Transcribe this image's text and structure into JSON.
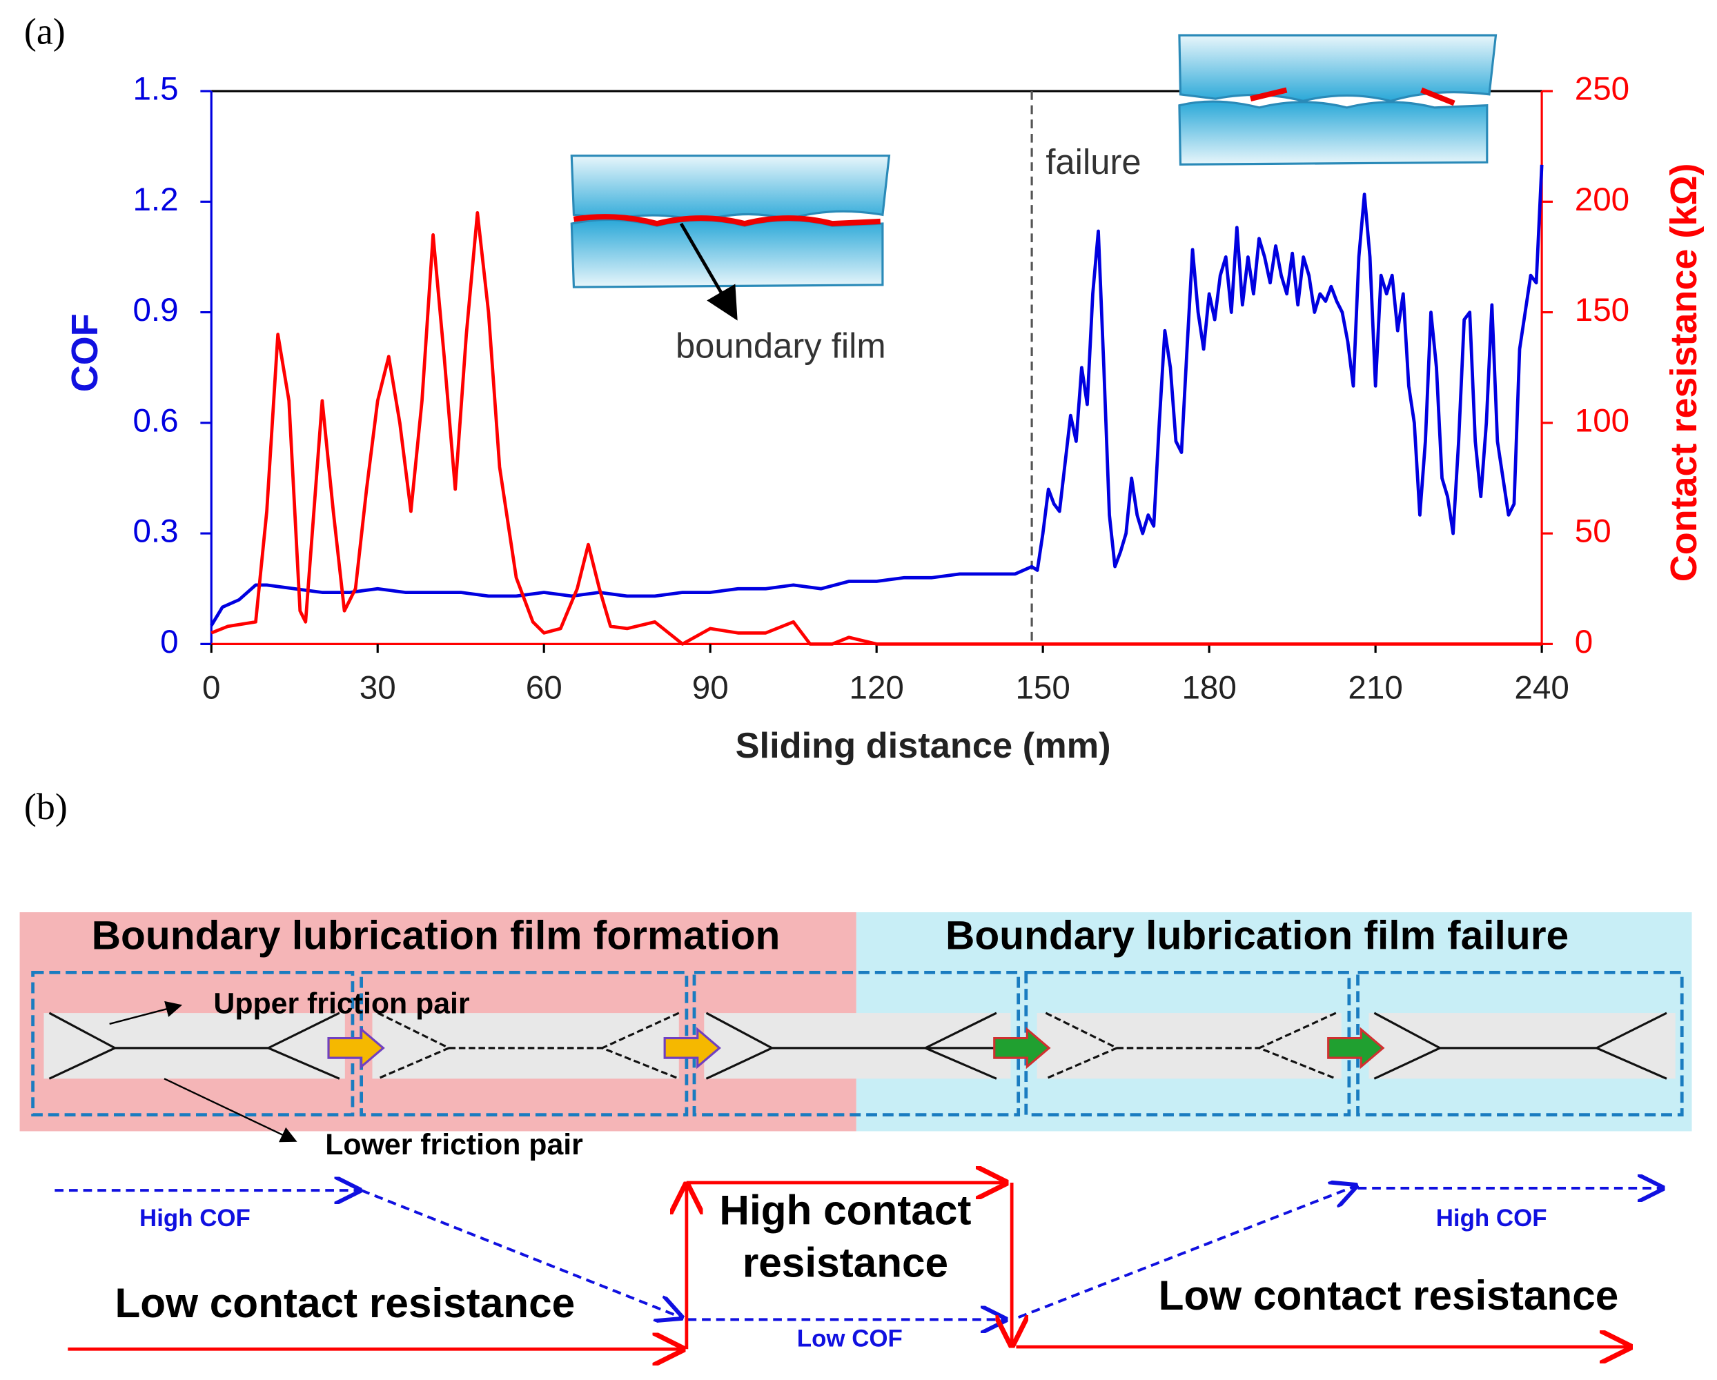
{
  "chart_data": {
    "type": "line",
    "panel_label": "(a)",
    "x_label": "Sliding distance (mm)",
    "y_label": "COF",
    "y2_label": "Contact resistance (kΩ)",
    "annotations": [
      {
        "text": "failure",
        "x": 148
      },
      {
        "text": "boundary film"
      }
    ],
    "xlim": [
      0,
      240
    ],
    "xticks": [
      0,
      30,
      60,
      90,
      120,
      150,
      180,
      210,
      240
    ],
    "ylim": [
      0,
      1.5
    ],
    "yticks": [
      0,
      0.3,
      0.6,
      0.9,
      1.2,
      1.5
    ],
    "y2lim": [
      0,
      250
    ],
    "y2ticks": [
      0,
      50,
      100,
      150,
      200,
      250
    ],
    "series": [
      {
        "color": "#0000e0",
        "axis": "y",
        "x": [
          0,
          2,
          5,
          8,
          10,
          15,
          20,
          25,
          30,
          35,
          40,
          45,
          50,
          55,
          60,
          65,
          70,
          75,
          80,
          85,
          90,
          95,
          100,
          105,
          110,
          115,
          120,
          125,
          130,
          135,
          140,
          145,
          148,
          149,
          150,
          151,
          152,
          153,
          155,
          156,
          157,
          158,
          159,
          160,
          161,
          162,
          163,
          164,
          165,
          166,
          167,
          168,
          169,
          170,
          171,
          172,
          173,
          174,
          175,
          176,
          177,
          178,
          179,
          180,
          181,
          182,
          183,
          184,
          185,
          186,
          187,
          188,
          189,
          190,
          191,
          192,
          193,
          194,
          195,
          196,
          197,
          198,
          199,
          200,
          201,
          202,
          203,
          204,
          205,
          206,
          207,
          208,
          209,
          210,
          211,
          212,
          213,
          214,
          215,
          216,
          217,
          218,
          219,
          220,
          221,
          222,
          223,
          224,
          225,
          226,
          227,
          228,
          229,
          230,
          231,
          232,
          233,
          234,
          235,
          236,
          237,
          238,
          239,
          240
        ],
        "values": [
          0.05,
          0.1,
          0.12,
          0.16,
          0.16,
          0.15,
          0.14,
          0.14,
          0.15,
          0.14,
          0.14,
          0.14,
          0.13,
          0.13,
          0.14,
          0.13,
          0.14,
          0.13,
          0.13,
          0.14,
          0.14,
          0.15,
          0.15,
          0.16,
          0.15,
          0.17,
          0.17,
          0.18,
          0.18,
          0.19,
          0.19,
          0.19,
          0.21,
          0.2,
          0.3,
          0.42,
          0.38,
          0.36,
          0.62,
          0.55,
          0.75,
          0.65,
          0.95,
          1.12,
          0.75,
          0.35,
          0.21,
          0.25,
          0.3,
          0.45,
          0.35,
          0.3,
          0.35,
          0.32,
          0.6,
          0.85,
          0.75,
          0.55,
          0.52,
          0.8,
          1.07,
          0.9,
          0.8,
          0.95,
          0.88,
          1.0,
          1.05,
          0.9,
          1.13,
          0.92,
          1.05,
          0.95,
          1.1,
          1.05,
          0.98,
          1.08,
          1.0,
          0.95,
          1.06,
          0.92,
          1.05,
          1.0,
          0.9,
          0.95,
          0.93,
          0.97,
          0.93,
          0.9,
          0.82,
          0.7,
          1.05,
          1.22,
          1.05,
          0.7,
          1.0,
          0.95,
          1.0,
          0.85,
          0.95,
          0.7,
          0.6,
          0.35,
          0.55,
          0.9,
          0.75,
          0.45,
          0.4,
          0.3,
          0.55,
          0.88,
          0.9,
          0.55,
          0.4,
          0.6,
          0.92,
          0.55,
          0.45,
          0.35,
          0.38,
          0.8,
          0.9,
          1.0,
          0.98,
          1.3
        ]
      },
      {
        "color": "#ff0000",
        "axis": "y2",
        "x": [
          0,
          3,
          8,
          10,
          12,
          14,
          16,
          17,
          20,
          22,
          24,
          26,
          28,
          30,
          32,
          34,
          36,
          38,
          40,
          42,
          44,
          46,
          48,
          50,
          52,
          55,
          58,
          60,
          63,
          66,
          68,
          70,
          72,
          75,
          80,
          85,
          90,
          95,
          100,
          105,
          108,
          112,
          115,
          120,
          240
        ],
        "values": [
          5,
          8,
          10,
          60,
          140,
          110,
          15,
          10,
          110,
          60,
          15,
          25,
          70,
          110,
          130,
          100,
          60,
          110,
          185,
          130,
          70,
          140,
          195,
          150,
          80,
          30,
          10,
          5,
          7,
          25,
          45,
          25,
          8,
          7,
          10,
          0,
          7,
          5,
          5,
          10,
          0,
          0,
          3,
          0,
          0
        ]
      }
    ]
  },
  "diagram": {
    "panel_label": "(b)",
    "stages": [
      "Boundary lubrication film formation",
      "Boundary lubrication film failure"
    ],
    "upper": "Upper friction pair",
    "lower": "Lower friction pair",
    "high_cof": "High COF",
    "low_cof": "Low COF",
    "high_resistance": [
      "High contact",
      "resistance"
    ],
    "low_resistance": "Low contact resistance"
  }
}
